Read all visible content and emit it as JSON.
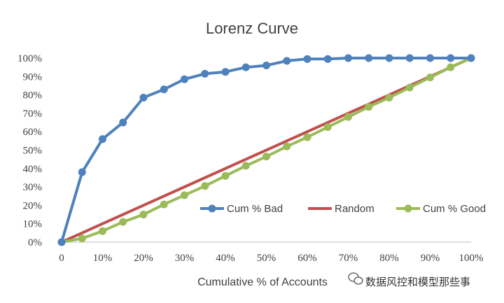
{
  "chart_data": {
    "type": "line",
    "title": "Lorenz Curve",
    "xlabel": "Cumulative % of Accounts",
    "ylabel": "",
    "xlim": [
      0,
      100
    ],
    "ylim": [
      0,
      100
    ],
    "x_tick_labels": [
      "0",
      "10%",
      "20%",
      "30%",
      "40%",
      "50%",
      "60%",
      "70%",
      "80%",
      "90%",
      "100%"
    ],
    "y_tick_labels": [
      "0%",
      "10%",
      "20%",
      "30%",
      "40%",
      "50%",
      "60%",
      "70%",
      "80%",
      "90%",
      "100%"
    ],
    "grid": false,
    "legend_position": "right",
    "series": [
      {
        "name": "Cum % Bad",
        "color": "#4F81BD",
        "markers": true,
        "x": [
          0,
          5,
          10,
          15,
          20,
          25,
          30,
          35,
          40,
          45,
          50,
          55,
          60,
          65,
          70,
          75,
          80,
          85,
          90,
          95,
          100
        ],
        "values": [
          0,
          38,
          56,
          65,
          78.5,
          83,
          88.5,
          91.5,
          92.5,
          95,
          96,
          98.5,
          99.5,
          99.5,
          100,
          100,
          100,
          100,
          100,
          100,
          100
        ]
      },
      {
        "name": "Random",
        "color": "#C0504D",
        "markers": false,
        "x": [
          0,
          100
        ],
        "values": [
          0,
          100
        ]
      },
      {
        "name": "Cum % Good",
        "color": "#9BBB59",
        "markers": true,
        "x": [
          0,
          5,
          10,
          15,
          20,
          25,
          30,
          35,
          40,
          45,
          50,
          55,
          60,
          65,
          70,
          75,
          80,
          85,
          90,
          95,
          100
        ],
        "values": [
          0,
          2,
          6,
          11,
          15,
          20.5,
          25.5,
          30.5,
          36,
          41.5,
          46.5,
          52,
          57,
          62.5,
          68,
          73.5,
          78.5,
          84,
          89.5,
          95,
          100
        ]
      }
    ]
  },
  "watermark": {
    "text": "数据风控和模型那些事",
    "icon": "wechat-icon"
  }
}
